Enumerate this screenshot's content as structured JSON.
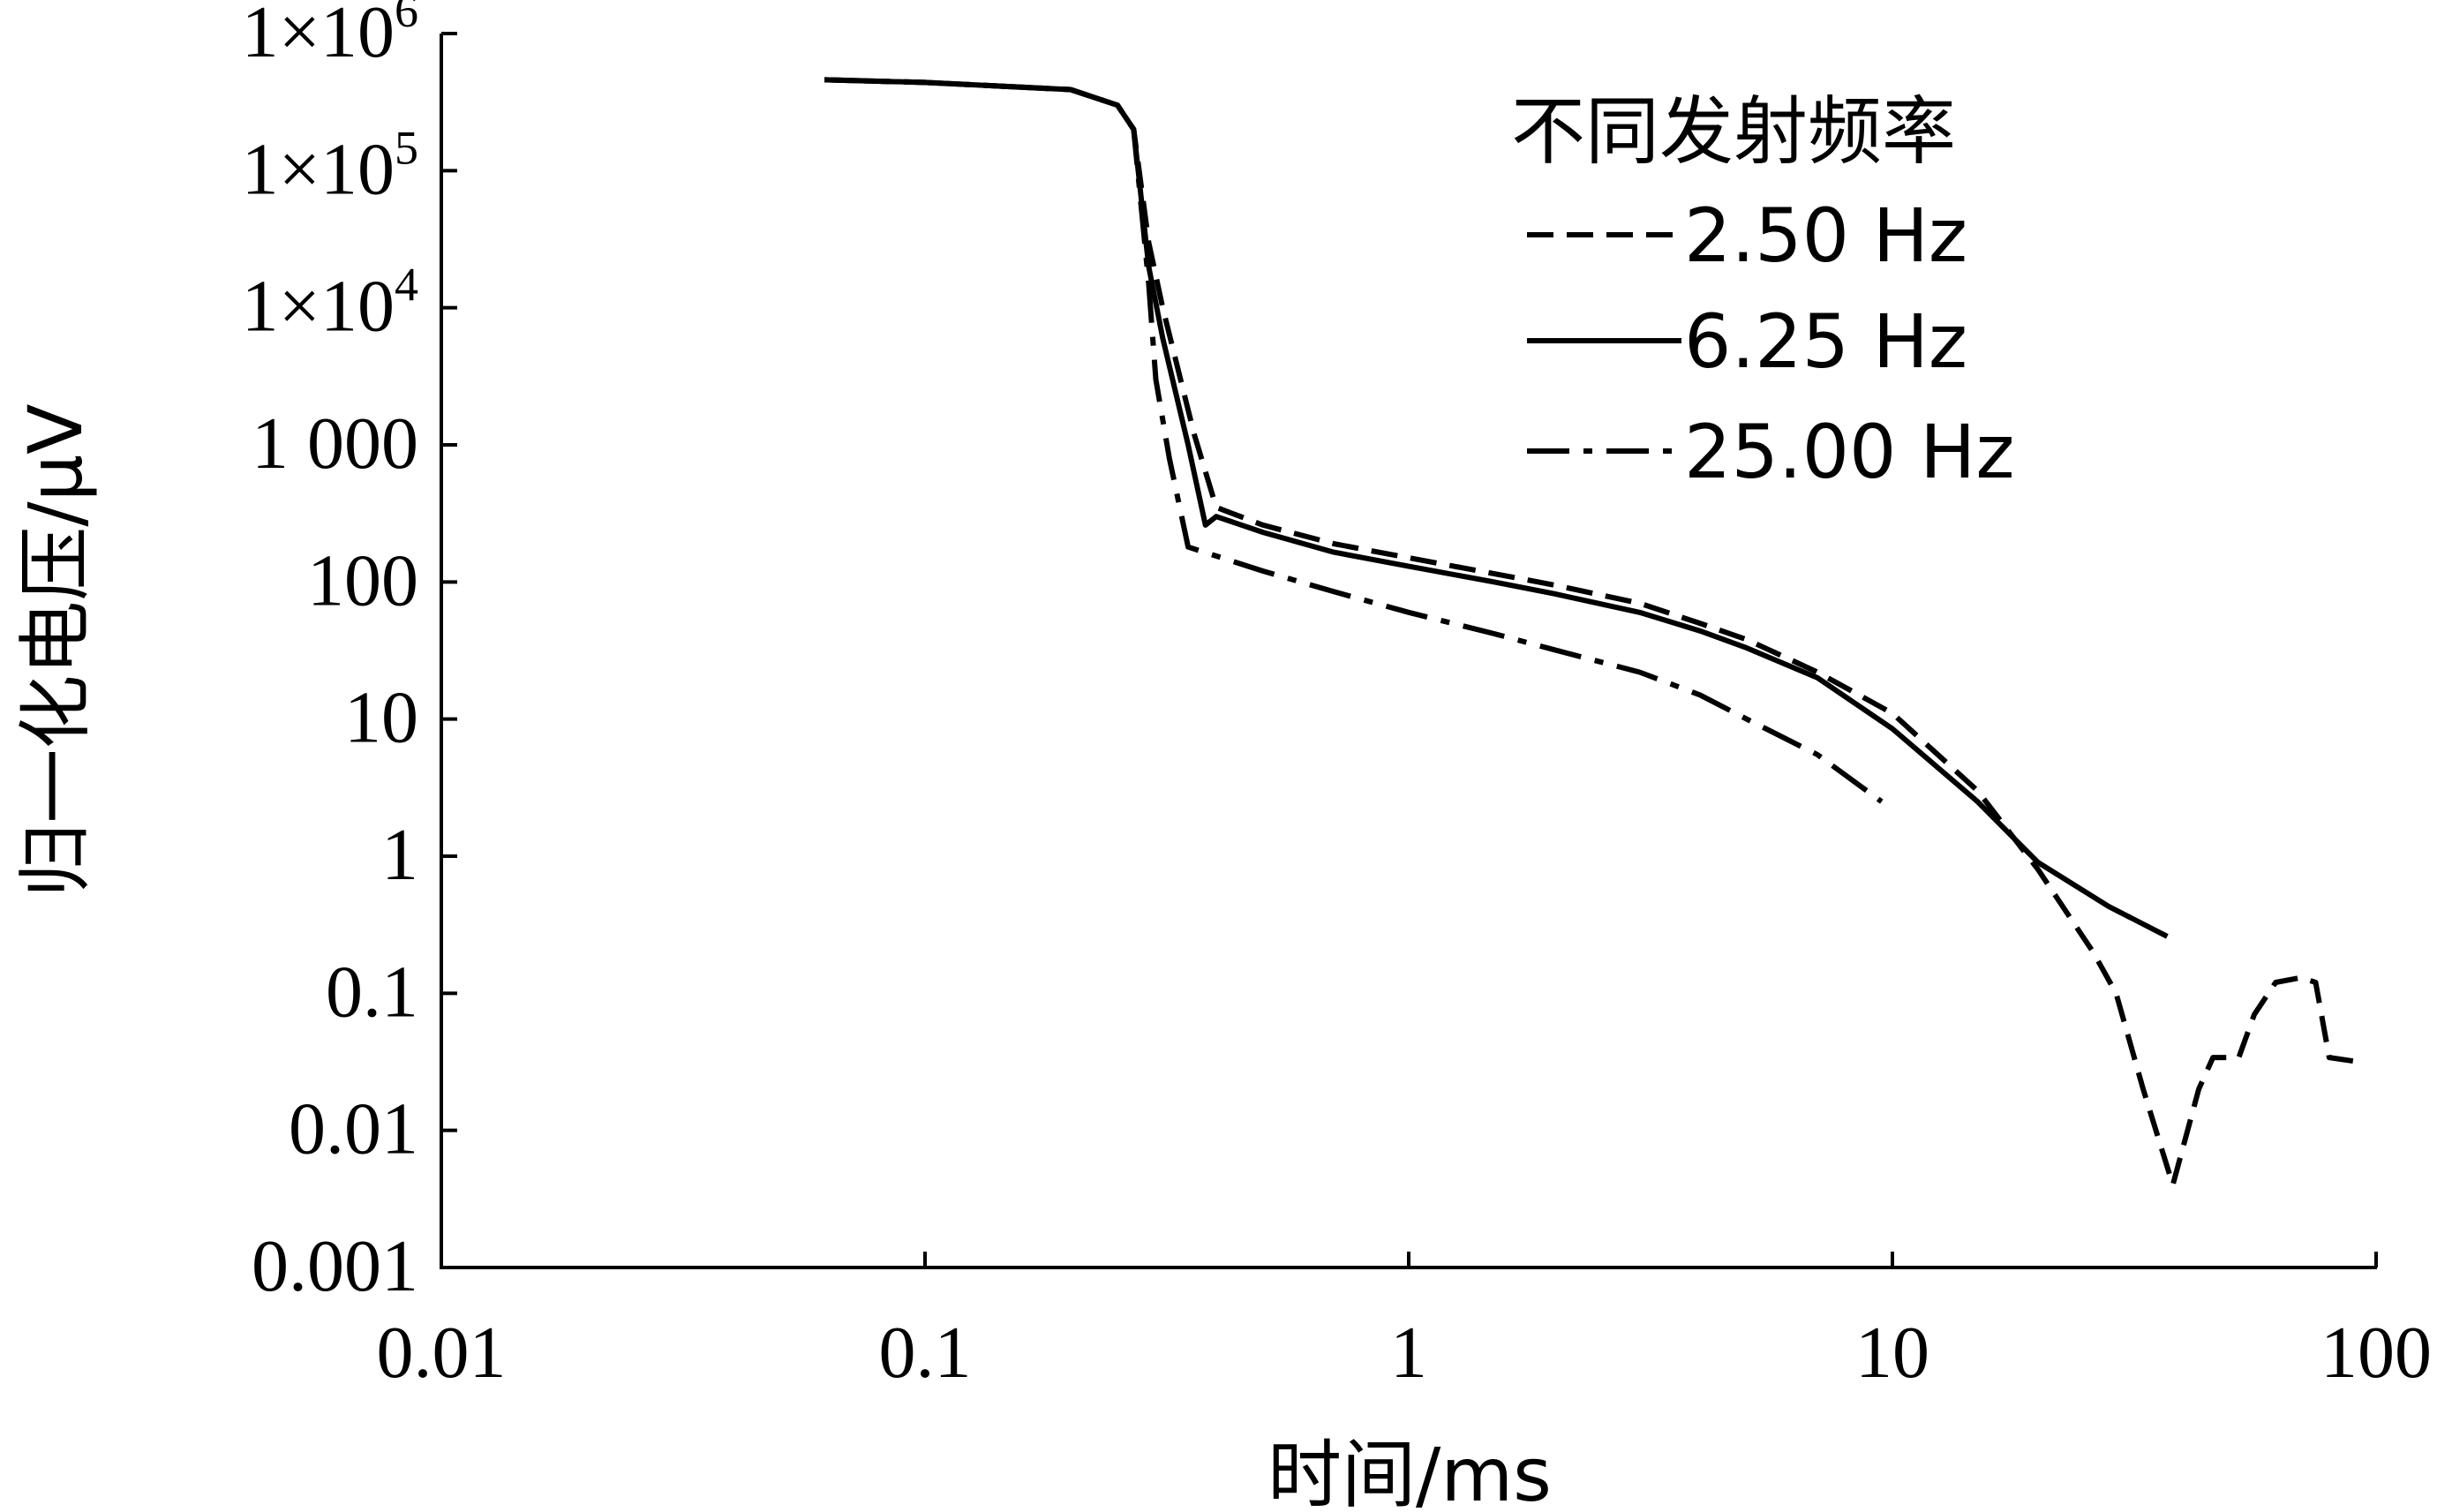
{
  "chart_data": {
    "type": "line",
    "xlabel": "时间/ms",
    "ylabel": "归一化电压/μV",
    "x_scale": "log",
    "y_scale": "log",
    "xlim": [
      0.01,
      100
    ],
    "ylim": [
      0.001,
      1000000
    ],
    "x_ticks": [
      {
        "value": 0.01,
        "label": "0.01"
      },
      {
        "value": 0.1,
        "label": "0.1"
      },
      {
        "value": 1,
        "label": "1"
      },
      {
        "value": 10,
        "label": "10"
      },
      {
        "value": 100,
        "label": "100"
      }
    ],
    "y_ticks": [
      {
        "value": 1000000,
        "base": "1×10",
        "exp": "6"
      },
      {
        "value": 100000,
        "base": "1×10",
        "exp": "5"
      },
      {
        "value": 10000,
        "base": "1×10",
        "exp": "4"
      },
      {
        "value": 1000,
        "base": "1 000",
        "exp": ""
      },
      {
        "value": 100,
        "base": "100",
        "exp": ""
      },
      {
        "value": 10,
        "base": "10",
        "exp": ""
      },
      {
        "value": 1,
        "base": "1",
        "exp": ""
      },
      {
        "value": 0.1,
        "base": "0.1",
        "exp": ""
      },
      {
        "value": 0.01,
        "base": "0.01",
        "exp": ""
      },
      {
        "value": 0.001,
        "base": "0.001",
        "exp": ""
      }
    ],
    "legend": {
      "title": "不同发射频率",
      "position": "top-right"
    },
    "grid": false,
    "series": [
      {
        "name": "2.50 Hz",
        "style": "dashed",
        "color": "#000000",
        "points": [
          [
            0.062,
            460000
          ],
          [
            0.1,
            440000
          ],
          [
            0.2,
            390000
          ],
          [
            0.25,
            300000
          ],
          [
            0.27,
            200000
          ],
          [
            0.29,
            30000
          ],
          [
            0.31,
            10000
          ],
          [
            0.36,
            1200
          ],
          [
            0.4,
            350
          ],
          [
            0.5,
            260
          ],
          [
            0.7,
            190
          ],
          [
            1,
            150
          ],
          [
            1.5,
            115
          ],
          [
            2,
            95
          ],
          [
            3,
            70
          ],
          [
            4,
            50
          ],
          [
            5,
            38
          ],
          [
            7,
            22
          ],
          [
            10,
            11
          ],
          [
            15,
            3
          ],
          [
            20,
            0.8
          ],
          [
            26,
            0.2
          ],
          [
            29,
            0.1
          ],
          [
            33,
            0.02
          ],
          [
            38,
            0.004
          ],
          [
            43,
            0.02
          ],
          [
            46,
            0.034
          ],
          [
            52,
            0.034
          ],
          [
            56,
            0.07
          ],
          [
            62,
            0.12
          ],
          [
            70,
            0.13
          ],
          [
            75,
            0.12
          ],
          [
            80,
            0.034
          ],
          [
            90,
            0.032
          ],
          [
            95,
            0.032
          ]
        ]
      },
      {
        "name": "6.25 Hz",
        "style": "solid",
        "color": "#000000",
        "points": [
          [
            0.062,
            460000
          ],
          [
            0.1,
            440000
          ],
          [
            0.2,
            390000
          ],
          [
            0.25,
            300000
          ],
          [
            0.27,
            200000
          ],
          [
            0.29,
            20000
          ],
          [
            0.31,
            6000
          ],
          [
            0.35,
            1000
          ],
          [
            0.38,
            260
          ],
          [
            0.4,
            300
          ],
          [
            0.5,
            230
          ],
          [
            0.7,
            165
          ],
          [
            1,
            130
          ],
          [
            1.5,
            100
          ],
          [
            2,
            82
          ],
          [
            3,
            60
          ],
          [
            4,
            44
          ],
          [
            5,
            33
          ],
          [
            7,
            20
          ],
          [
            10,
            8.5
          ],
          [
            15,
            2.5
          ],
          [
            20,
            0.9
          ],
          [
            28,
            0.43
          ],
          [
            37,
            0.26
          ]
        ]
      },
      {
        "name": "25.00 Hz",
        "style": "dash-dot",
        "color": "#000000",
        "points": [
          [
            0.062,
            460000
          ],
          [
            0.1,
            440000
          ],
          [
            0.2,
            390000
          ],
          [
            0.25,
            300000
          ],
          [
            0.27,
            200000
          ],
          [
            0.29,
            15000
          ],
          [
            0.3,
            3000
          ],
          [
            0.32,
            800
          ],
          [
            0.35,
            180
          ],
          [
            0.5,
            120
          ],
          [
            0.7,
            85
          ],
          [
            1,
            60
          ],
          [
            1.5,
            42
          ],
          [
            2,
            32
          ],
          [
            3,
            22
          ],
          [
            4,
            15
          ],
          [
            5,
            10
          ],
          [
            7,
            5.5
          ],
          [
            9.5,
            2.5
          ]
        ]
      }
    ]
  }
}
